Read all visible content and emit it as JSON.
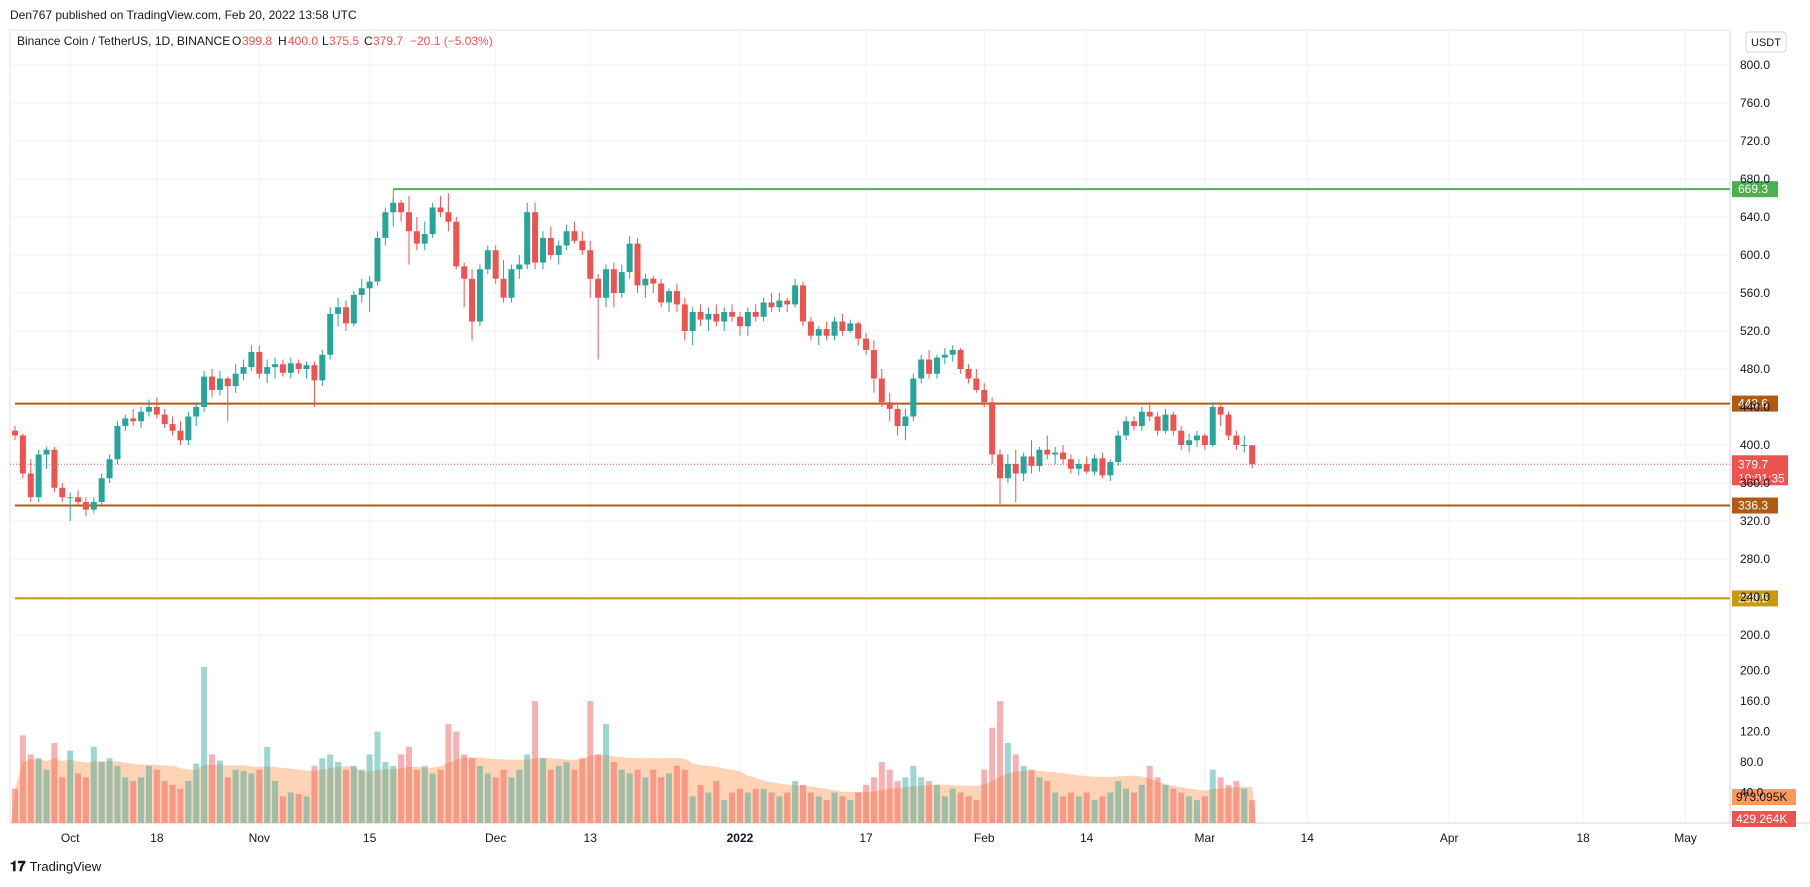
{
  "header": {
    "published": "Den767 published on TradingView.com, Feb 20, 2022 13:58 UTC"
  },
  "legend": {
    "symbol": "Binance Coin / TetherUS, 1D, BINANCE",
    "o_label": "O",
    "o_value": "399.8",
    "h_label": "H",
    "h_value": "400.0",
    "l_label": "L",
    "l_value": "375.5",
    "c_label": "C",
    "c_value": "379.7",
    "change": "−20.1 (−5.03%)"
  },
  "currency_button": "USDT",
  "footer": {
    "brand": "TradingView"
  },
  "colors": {
    "up": "#26a69a",
    "down": "#ef5350",
    "level_orange": "#b25a12",
    "level_gold": "#c79a10",
    "level_green": "#4caf50",
    "volume_ma": "#ffb07a"
  },
  "chart_data": {
    "type": "candlestick",
    "ylim": [
      190,
      820
    ],
    "yticks": [
      "800.0",
      "760.0",
      "720.0",
      "680.0",
      "640.0",
      "600.0",
      "560.0",
      "520.0",
      "480.0",
      "440.0",
      "400.0",
      "360.0",
      "320.0",
      "280.0",
      "240.0",
      "200.0"
    ],
    "x_ticks": [
      {
        "label": "Oct",
        "day": 7
      },
      {
        "label": "18",
        "day": 18
      },
      {
        "label": "Nov",
        "day": 31
      },
      {
        "label": "15",
        "day": 45
      },
      {
        "label": "Dec",
        "day": 61
      },
      {
        "label": "13",
        "day": 73
      },
      {
        "label": "2022",
        "day": 92
      },
      {
        "label": "17",
        "day": 108
      },
      {
        "label": "Feb",
        "day": 123
      },
      {
        "label": "14",
        "day": 136
      },
      {
        "label": "Mar",
        "day": 151
      },
      {
        "label": "14",
        "day": 164
      },
      {
        "label": "Apr",
        "day": 182
      },
      {
        "label": "18",
        "day": 199
      },
      {
        "label": "May",
        "day": 212
      }
    ],
    "levels": [
      {
        "label": "669.3",
        "value": 669.3,
        "color": "#4caf50",
        "start_day": 48
      },
      {
        "label": "443.6",
        "value": 443.6,
        "color": "#b25a12",
        "start_day": 0
      },
      {
        "label": "336.3",
        "value": 336.3,
        "color": "#b25a12",
        "start_day": 0
      },
      {
        "label": "238.5",
        "value": 238.5,
        "color": "#c79a10",
        "start_day": 0
      }
    ],
    "last_price": {
      "label": "379.7",
      "value": 379.7,
      "countdown": "10:01:35"
    },
    "volume": {
      "scale_ticks": [
        "200.0",
        "160.0",
        "120.0",
        "80.0",
        "40.0"
      ],
      "max": 230,
      "ma_label": "973.095K",
      "last_label": "429.264K"
    },
    "candles": [
      {
        "o": 415,
        "h": 420,
        "l": 405,
        "c": 410,
        "v": 45
      },
      {
        "o": 410,
        "h": 412,
        "l": 365,
        "c": 370,
        "v": 115
      },
      {
        "o": 370,
        "h": 385,
        "l": 340,
        "c": 345,
        "v": 90
      },
      {
        "o": 345,
        "h": 395,
        "l": 340,
        "c": 390,
        "v": 85
      },
      {
        "o": 390,
        "h": 398,
        "l": 375,
        "c": 395,
        "v": 70
      },
      {
        "o": 395,
        "h": 398,
        "l": 350,
        "c": 355,
        "v": 105
      },
      {
        "o": 355,
        "h": 360,
        "l": 340,
        "c": 345,
        "v": 60
      },
      {
        "o": 345,
        "h": 350,
        "l": 320,
        "c": 345,
        "v": 95
      },
      {
        "o": 345,
        "h": 352,
        "l": 335,
        "c": 340,
        "v": 65
      },
      {
        "o": 340,
        "h": 345,
        "l": 325,
        "c": 332,
        "v": 60
      },
      {
        "o": 332,
        "h": 345,
        "l": 328,
        "c": 340,
        "v": 100
      },
      {
        "o": 340,
        "h": 370,
        "l": 335,
        "c": 365,
        "v": 80
      },
      {
        "o": 365,
        "h": 390,
        "l": 360,
        "c": 385,
        "v": 85
      },
      {
        "o": 385,
        "h": 425,
        "l": 380,
        "c": 420,
        "v": 75
      },
      {
        "o": 420,
        "h": 432,
        "l": 415,
        "c": 428,
        "v": 60
      },
      {
        "o": 428,
        "h": 438,
        "l": 420,
        "c": 425,
        "v": 55
      },
      {
        "o": 425,
        "h": 440,
        "l": 418,
        "c": 435,
        "v": 60
      },
      {
        "o": 435,
        "h": 448,
        "l": 430,
        "c": 440,
        "v": 75
      },
      {
        "o": 440,
        "h": 450,
        "l": 428,
        "c": 432,
        "v": 70
      },
      {
        "o": 432,
        "h": 438,
        "l": 418,
        "c": 422,
        "v": 55
      },
      {
        "o": 422,
        "h": 430,
        "l": 410,
        "c": 415,
        "v": 50
      },
      {
        "o": 415,
        "h": 425,
        "l": 400,
        "c": 405,
        "v": 45
      },
      {
        "o": 405,
        "h": 435,
        "l": 400,
        "c": 430,
        "v": 55
      },
      {
        "o": 430,
        "h": 445,
        "l": 420,
        "c": 440,
        "v": 78
      },
      {
        "o": 440,
        "h": 478,
        "l": 435,
        "c": 472,
        "v": 205
      },
      {
        "o": 472,
        "h": 480,
        "l": 450,
        "c": 458,
        "v": 90
      },
      {
        "o": 458,
        "h": 478,
        "l": 452,
        "c": 470,
        "v": 82
      },
      {
        "o": 470,
        "h": 472,
        "l": 425,
        "c": 462,
        "v": 60
      },
      {
        "o": 462,
        "h": 485,
        "l": 455,
        "c": 475,
        "v": 70
      },
      {
        "o": 475,
        "h": 490,
        "l": 468,
        "c": 482,
        "v": 68
      },
      {
        "o": 482,
        "h": 505,
        "l": 478,
        "c": 498,
        "v": 65
      },
      {
        "o": 498,
        "h": 505,
        "l": 470,
        "c": 475,
        "v": 70
      },
      {
        "o": 475,
        "h": 490,
        "l": 465,
        "c": 482,
        "v": 100
      },
      {
        "o": 482,
        "h": 492,
        "l": 470,
        "c": 485,
        "v": 55
      },
      {
        "o": 485,
        "h": 490,
        "l": 472,
        "c": 476,
        "v": 35
      },
      {
        "o": 476,
        "h": 492,
        "l": 470,
        "c": 486,
        "v": 40
      },
      {
        "o": 486,
        "h": 490,
        "l": 475,
        "c": 480,
        "v": 38
      },
      {
        "o": 480,
        "h": 488,
        "l": 470,
        "c": 484,
        "v": 35
      },
      {
        "o": 484,
        "h": 488,
        "l": 440,
        "c": 468,
        "v": 75
      },
      {
        "o": 468,
        "h": 500,
        "l": 462,
        "c": 495,
        "v": 85
      },
      {
        "o": 495,
        "h": 545,
        "l": 490,
        "c": 538,
        "v": 90
      },
      {
        "o": 538,
        "h": 555,
        "l": 525,
        "c": 545,
        "v": 80
      },
      {
        "o": 545,
        "h": 552,
        "l": 520,
        "c": 528,
        "v": 70
      },
      {
        "o": 528,
        "h": 562,
        "l": 525,
        "c": 558,
        "v": 75
      },
      {
        "o": 558,
        "h": 575,
        "l": 550,
        "c": 565,
        "v": 70
      },
      {
        "o": 565,
        "h": 578,
        "l": 540,
        "c": 572,
        "v": 90
      },
      {
        "o": 572,
        "h": 625,
        "l": 568,
        "c": 618,
        "v": 120
      },
      {
        "o": 618,
        "h": 650,
        "l": 610,
        "c": 645,
        "v": 80
      },
      {
        "o": 645,
        "h": 660,
        "l": 630,
        "c": 655,
        "v": 75
      },
      {
        "o": 655,
        "h": 658,
        "l": 635,
        "c": 645,
        "v": 90
      },
      {
        "o": 645,
        "h": 662,
        "l": 590,
        "c": 625,
        "v": 100
      },
      {
        "o": 625,
        "h": 640,
        "l": 605,
        "c": 612,
        "v": 70
      },
      {
        "o": 612,
        "h": 635,
        "l": 605,
        "c": 622,
        "v": 75
      },
      {
        "o": 622,
        "h": 655,
        "l": 618,
        "c": 650,
        "v": 65
      },
      {
        "o": 650,
        "h": 662,
        "l": 640,
        "c": 645,
        "v": 70
      },
      {
        "o": 645,
        "h": 665,
        "l": 625,
        "c": 635,
        "v": 130
      },
      {
        "o": 635,
        "h": 640,
        "l": 585,
        "c": 588,
        "v": 120
      },
      {
        "o": 588,
        "h": 592,
        "l": 545,
        "c": 575,
        "v": 90
      },
      {
        "o": 575,
        "h": 585,
        "l": 510,
        "c": 530,
        "v": 85
      },
      {
        "o": 530,
        "h": 590,
        "l": 525,
        "c": 585,
        "v": 75
      },
      {
        "o": 585,
        "h": 610,
        "l": 580,
        "c": 605,
        "v": 65
      },
      {
        "o": 605,
        "h": 610,
        "l": 570,
        "c": 575,
        "v": 60
      },
      {
        "o": 575,
        "h": 595,
        "l": 550,
        "c": 555,
        "v": 70
      },
      {
        "o": 555,
        "h": 590,
        "l": 550,
        "c": 585,
        "v": 60
      },
      {
        "o": 585,
        "h": 600,
        "l": 575,
        "c": 590,
        "v": 70
      },
      {
        "o": 590,
        "h": 655,
        "l": 585,
        "c": 645,
        "v": 90
      },
      {
        "o": 645,
        "h": 655,
        "l": 585,
        "c": 592,
        "v": 160
      },
      {
        "o": 592,
        "h": 625,
        "l": 585,
        "c": 618,
        "v": 85
      },
      {
        "o": 618,
        "h": 630,
        "l": 595,
        "c": 600,
        "v": 70
      },
      {
        "o": 600,
        "h": 615,
        "l": 590,
        "c": 610,
        "v": 75
      },
      {
        "o": 610,
        "h": 632,
        "l": 605,
        "c": 625,
        "v": 80
      },
      {
        "o": 625,
        "h": 635,
        "l": 612,
        "c": 615,
        "v": 70
      },
      {
        "o": 615,
        "h": 625,
        "l": 600,
        "c": 605,
        "v": 85
      },
      {
        "o": 605,
        "h": 615,
        "l": 555,
        "c": 575,
        "v": 160
      },
      {
        "o": 575,
        "h": 580,
        "l": 490,
        "c": 555,
        "v": 90
      },
      {
        "o": 555,
        "h": 590,
        "l": 545,
        "c": 585,
        "v": 130
      },
      {
        "o": 585,
        "h": 592,
        "l": 545,
        "c": 560,
        "v": 80
      },
      {
        "o": 560,
        "h": 590,
        "l": 555,
        "c": 582,
        "v": 70
      },
      {
        "o": 582,
        "h": 620,
        "l": 575,
        "c": 612,
        "v": 65
      },
      {
        "o": 612,
        "h": 618,
        "l": 560,
        "c": 568,
        "v": 70
      },
      {
        "o": 568,
        "h": 580,
        "l": 555,
        "c": 575,
        "v": 60
      },
      {
        "o": 575,
        "h": 578,
        "l": 560,
        "c": 570,
        "v": 70
      },
      {
        "o": 570,
        "h": 575,
        "l": 545,
        "c": 550,
        "v": 60
      },
      {
        "o": 550,
        "h": 565,
        "l": 540,
        "c": 562,
        "v": 65
      },
      {
        "o": 562,
        "h": 570,
        "l": 540,
        "c": 548,
        "v": 75
      },
      {
        "o": 548,
        "h": 555,
        "l": 510,
        "c": 520,
        "v": 70
      },
      {
        "o": 520,
        "h": 545,
        "l": 505,
        "c": 540,
        "v": 35
      },
      {
        "o": 540,
        "h": 548,
        "l": 525,
        "c": 532,
        "v": 50
      },
      {
        "o": 532,
        "h": 545,
        "l": 520,
        "c": 538,
        "v": 40
      },
      {
        "o": 538,
        "h": 548,
        "l": 525,
        "c": 530,
        "v": 55
      },
      {
        "o": 530,
        "h": 545,
        "l": 520,
        "c": 540,
        "v": 30
      },
      {
        "o": 540,
        "h": 548,
        "l": 530,
        "c": 535,
        "v": 40
      },
      {
        "o": 535,
        "h": 540,
        "l": 515,
        "c": 525,
        "v": 45
      },
      {
        "o": 525,
        "h": 545,
        "l": 515,
        "c": 540,
        "v": 40
      },
      {
        "o": 540,
        "h": 548,
        "l": 530,
        "c": 535,
        "v": 45
      },
      {
        "o": 535,
        "h": 555,
        "l": 530,
        "c": 550,
        "v": 45
      },
      {
        "o": 550,
        "h": 560,
        "l": 540,
        "c": 545,
        "v": 40
      },
      {
        "o": 545,
        "h": 560,
        "l": 540,
        "c": 552,
        "v": 35
      },
      {
        "o": 552,
        "h": 555,
        "l": 540,
        "c": 548,
        "v": 40
      },
      {
        "o": 548,
        "h": 575,
        "l": 545,
        "c": 568,
        "v": 55
      },
      {
        "o": 568,
        "h": 572,
        "l": 525,
        "c": 530,
        "v": 50
      },
      {
        "o": 530,
        "h": 535,
        "l": 510,
        "c": 515,
        "v": 40
      },
      {
        "o": 515,
        "h": 525,
        "l": 505,
        "c": 522,
        "v": 35
      },
      {
        "o": 522,
        "h": 530,
        "l": 510,
        "c": 515,
        "v": 30
      },
      {
        "o": 515,
        "h": 535,
        "l": 510,
        "c": 530,
        "v": 40
      },
      {
        "o": 530,
        "h": 538,
        "l": 515,
        "c": 520,
        "v": 35
      },
      {
        "o": 520,
        "h": 532,
        "l": 518,
        "c": 528,
        "v": 30
      },
      {
        "o": 528,
        "h": 530,
        "l": 505,
        "c": 512,
        "v": 40
      },
      {
        "o": 512,
        "h": 518,
        "l": 495,
        "c": 500,
        "v": 50
      },
      {
        "o": 500,
        "h": 510,
        "l": 455,
        "c": 470,
        "v": 60
      },
      {
        "o": 470,
        "h": 480,
        "l": 440,
        "c": 445,
        "v": 80
      },
      {
        "o": 445,
        "h": 455,
        "l": 425,
        "c": 438,
        "v": 70
      },
      {
        "o": 438,
        "h": 442,
        "l": 410,
        "c": 420,
        "v": 55
      },
      {
        "o": 420,
        "h": 438,
        "l": 405,
        "c": 430,
        "v": 60
      },
      {
        "o": 430,
        "h": 475,
        "l": 425,
        "c": 470,
        "v": 75
      },
      {
        "o": 470,
        "h": 495,
        "l": 465,
        "c": 490,
        "v": 60
      },
      {
        "o": 490,
        "h": 500,
        "l": 470,
        "c": 475,
        "v": 55
      },
      {
        "o": 475,
        "h": 495,
        "l": 470,
        "c": 492,
        "v": 50
      },
      {
        "o": 492,
        "h": 502,
        "l": 485,
        "c": 495,
        "v": 35
      },
      {
        "o": 495,
        "h": 505,
        "l": 488,
        "c": 500,
        "v": 45
      },
      {
        "o": 500,
        "h": 502,
        "l": 475,
        "c": 480,
        "v": 40
      },
      {
        "o": 480,
        "h": 485,
        "l": 465,
        "c": 470,
        "v": 35
      },
      {
        "o": 470,
        "h": 480,
        "l": 455,
        "c": 458,
        "v": 30
      },
      {
        "o": 458,
        "h": 465,
        "l": 440,
        "c": 445,
        "v": 70
      },
      {
        "o": 445,
        "h": 450,
        "l": 380,
        "c": 390,
        "v": 125
      },
      {
        "o": 390,
        "h": 395,
        "l": 335,
        "c": 365,
        "v": 160
      },
      {
        "o": 365,
        "h": 390,
        "l": 360,
        "c": 380,
        "v": 105
      },
      {
        "o": 380,
        "h": 395,
        "l": 340,
        "c": 370,
        "v": 90
      },
      {
        "o": 370,
        "h": 392,
        "l": 362,
        "c": 388,
        "v": 75
      },
      {
        "o": 388,
        "h": 405,
        "l": 370,
        "c": 378,
        "v": 70
      },
      {
        "o": 378,
        "h": 398,
        "l": 372,
        "c": 395,
        "v": 60
      },
      {
        "o": 395,
        "h": 410,
        "l": 385,
        "c": 390,
        "v": 55
      },
      {
        "o": 390,
        "h": 398,
        "l": 380,
        "c": 392,
        "v": 40
      },
      {
        "o": 392,
        "h": 400,
        "l": 380,
        "c": 385,
        "v": 35
      },
      {
        "o": 385,
        "h": 390,
        "l": 370,
        "c": 375,
        "v": 40
      },
      {
        "o": 375,
        "h": 385,
        "l": 368,
        "c": 380,
        "v": 35
      },
      {
        "o": 380,
        "h": 388,
        "l": 370,
        "c": 372,
        "v": 40
      },
      {
        "o": 372,
        "h": 390,
        "l": 368,
        "c": 386,
        "v": 30
      },
      {
        "o": 386,
        "h": 392,
        "l": 365,
        "c": 368,
        "v": 35
      },
      {
        "o": 368,
        "h": 385,
        "l": 362,
        "c": 382,
        "v": 40
      },
      {
        "o": 382,
        "h": 415,
        "l": 378,
        "c": 410,
        "v": 55
      },
      {
        "o": 410,
        "h": 430,
        "l": 405,
        "c": 425,
        "v": 45
      },
      {
        "o": 425,
        "h": 430,
        "l": 415,
        "c": 420,
        "v": 40
      },
      {
        "o": 420,
        "h": 440,
        "l": 415,
        "c": 435,
        "v": 50
      },
      {
        "o": 435,
        "h": 445,
        "l": 425,
        "c": 430,
        "v": 75
      },
      {
        "o": 430,
        "h": 435,
        "l": 410,
        "c": 415,
        "v": 60
      },
      {
        "o": 415,
        "h": 438,
        "l": 412,
        "c": 432,
        "v": 50
      },
      {
        "o": 432,
        "h": 435,
        "l": 410,
        "c": 415,
        "v": 45
      },
      {
        "o": 415,
        "h": 420,
        "l": 395,
        "c": 400,
        "v": 40
      },
      {
        "o": 400,
        "h": 412,
        "l": 392,
        "c": 405,
        "v": 35
      },
      {
        "o": 405,
        "h": 415,
        "l": 398,
        "c": 410,
        "v": 30
      },
      {
        "o": 410,
        "h": 412,
        "l": 395,
        "c": 400,
        "v": 35
      },
      {
        "o": 400,
        "h": 445,
        "l": 398,
        "c": 440,
        "v": 70
      },
      {
        "o": 440,
        "h": 442,
        "l": 420,
        "c": 432,
        "v": 60
      },
      {
        "o": 432,
        "h": 435,
        "l": 405,
        "c": 410,
        "v": 50
      },
      {
        "o": 410,
        "h": 415,
        "l": 395,
        "c": 400,
        "v": 55
      },
      {
        "o": 400,
        "h": 410,
        "l": 392,
        "c": 400,
        "v": 45
      },
      {
        "o": 399.8,
        "h": 400,
        "l": 375.5,
        "c": 379.7,
        "v": 30
      }
    ]
  }
}
